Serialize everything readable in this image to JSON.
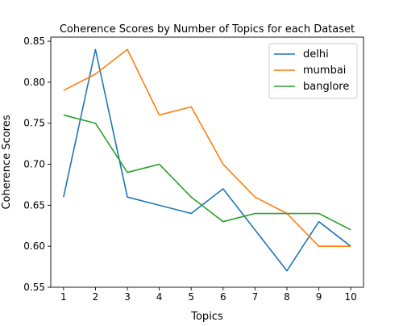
{
  "chart_data": {
    "type": "line",
    "title": "Coherence Scores by Number of Topics for each Dataset",
    "xlabel": "Topics",
    "ylabel": "Coherence Scores",
    "x": [
      1,
      2,
      3,
      4,
      5,
      6,
      7,
      8,
      9,
      10
    ],
    "xlim": [
      0.6,
      10.4
    ],
    "ylim": [
      0.55,
      0.855
    ],
    "yticks": [
      0.55,
      0.6,
      0.65,
      0.7,
      0.75,
      0.8,
      0.85
    ],
    "ytick_labels": [
      "0.55",
      "0.60",
      "0.65",
      "0.70",
      "0.75",
      "0.80",
      "0.85"
    ],
    "xticks": [
      1,
      2,
      3,
      4,
      5,
      6,
      7,
      8,
      9,
      10
    ],
    "xtick_labels": [
      "1",
      "2",
      "3",
      "4",
      "5",
      "6",
      "7",
      "8",
      "9",
      "10"
    ],
    "grid": false,
    "legend_position": "top-right",
    "series": [
      {
        "name": "delhi",
        "color": "#1f77b4",
        "values": [
          0.66,
          0.84,
          0.66,
          0.65,
          0.64,
          0.67,
          0.62,
          0.57,
          0.63,
          0.6
        ]
      },
      {
        "name": "mumbai",
        "color": "#ff7f0e",
        "values": [
          0.79,
          0.81,
          0.84,
          0.76,
          0.77,
          0.7,
          0.66,
          0.64,
          0.6,
          0.6
        ]
      },
      {
        "name": "banglore",
        "color": "#2ca02c",
        "values": [
          0.76,
          0.75,
          0.69,
          0.7,
          0.66,
          0.63,
          0.64,
          0.64,
          0.64,
          0.62
        ]
      }
    ]
  }
}
